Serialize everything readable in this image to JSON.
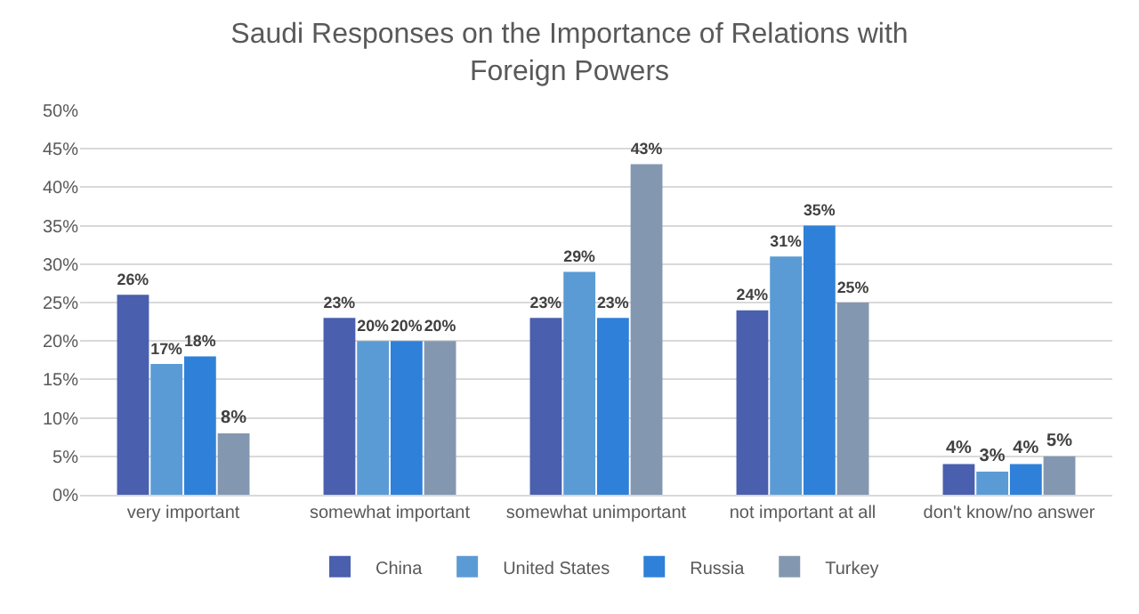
{
  "chart_data": {
    "type": "bar",
    "title": "Saudi Responses on the Importance of Relations with Foreign Powers",
    "categories": [
      "very important",
      "somewhat important",
      "somewhat unimportant",
      "not important at all",
      "don't know/no answer"
    ],
    "series": [
      {
        "name": "China",
        "color": "#4a5fae",
        "values": [
          26,
          23,
          23,
          24,
          4
        ],
        "value_labels": [
          "26%",
          "23%",
          "23%",
          "24%",
          "4%"
        ]
      },
      {
        "name": "United States",
        "color": "#5b9bd5",
        "values": [
          17,
          20,
          29,
          31,
          3
        ],
        "value_labels": [
          "17%",
          "20%",
          "29%",
          "31%",
          "3%"
        ]
      },
      {
        "name": "Russia",
        "color": "#2f80d8",
        "values": [
          18,
          20,
          23,
          35,
          4
        ],
        "value_labels": [
          "18%",
          "20%",
          "23%",
          "35%",
          "4%"
        ]
      },
      {
        "name": "Turkey",
        "color": "#8497b0",
        "values": [
          8,
          20,
          43,
          25,
          5
        ],
        "value_labels": [
          "8%",
          "20%",
          "43%",
          "25%",
          "5%"
        ]
      }
    ],
    "ylim": [
      0,
      50
    ],
    "yticks": [
      {
        "value": 0,
        "label": "0%"
      },
      {
        "value": 5,
        "label": "5%"
      },
      {
        "value": 10,
        "label": "10%"
      },
      {
        "value": 15,
        "label": "15%"
      },
      {
        "value": 20,
        "label": "20%"
      },
      {
        "value": 25,
        "label": "25%"
      },
      {
        "value": 30,
        "label": "30%"
      },
      {
        "value": 35,
        "label": "35%"
      },
      {
        "value": 40,
        "label": "40%"
      },
      {
        "value": 45,
        "label": "45%"
      },
      {
        "value": 50,
        "label": "50%"
      }
    ],
    "grid": "y",
    "legend": "bottom"
  }
}
